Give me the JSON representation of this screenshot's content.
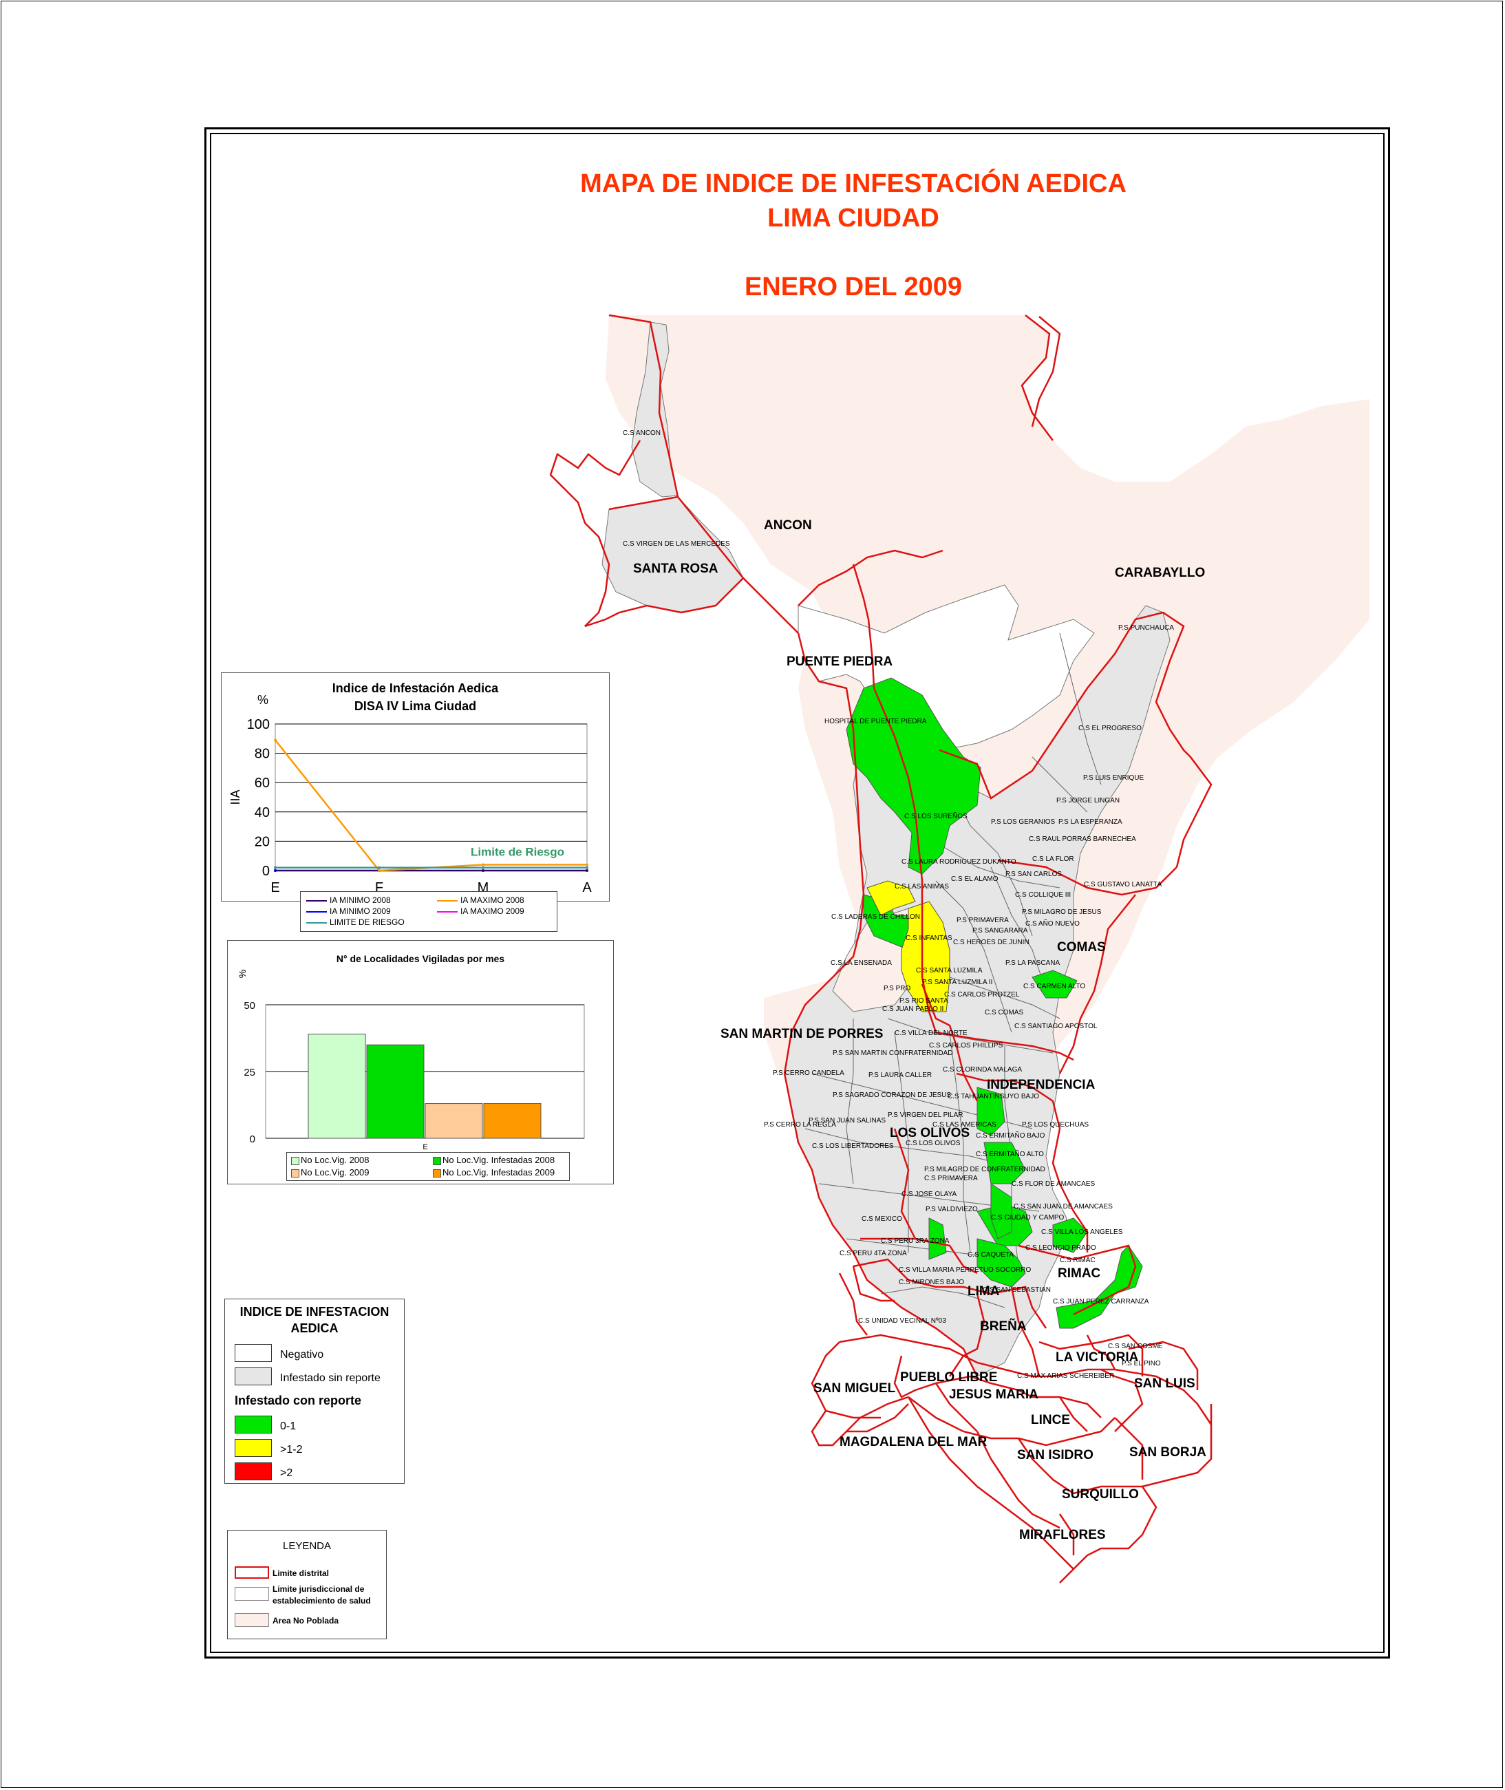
{
  "title": {
    "line1": "MAPA DE INDICE DE INFESTACIÓN AEDICA",
    "line2": "LIMA CIUDAD",
    "line3": "ENERO DEL 2009"
  },
  "colors": {
    "title": "#ff3300",
    "district_border": "#dd1111",
    "jurisdiction_border": "#666666",
    "uninhabited": "#fcefe9",
    "negative": "#ffffff",
    "no_report": "#e6e6e6",
    "green": "#00e600",
    "yellow": "#ffff00",
    "red": "#ff0000"
  },
  "districts": {
    "ancon": "ANCON",
    "santa_rosa": "SANTA ROSA",
    "carabayllo": "CARABAYLLO",
    "puente_piedra": "PUENTE PIEDRA",
    "comas": "COMAS",
    "san_martin": "SAN MARTIN DE PORRES",
    "independencia": "INDEPENDENCIA",
    "los_olivos": "LOS OLIVOS",
    "rimac": "RIMAC",
    "lima": "LIMA",
    "brena": "BREÑA",
    "la_victoria": "LA VICTORIA",
    "san_miguel": "SAN MIGUEL",
    "pueblo_libre": "PUEBLO LIBRE",
    "jesus_maria": "JESUS MARIA",
    "san_luis": "SAN LUIS",
    "lince": "LINCE",
    "magdalena": "MAGDALENA DEL MAR",
    "san_isidro": "SAN ISIDRO",
    "san_borja": "SAN BORJA",
    "surquillo": "SURQUILLO",
    "miraflores": "MIRAFLORES"
  },
  "establishments": [
    "C.S ANCON",
    "C.S VIRGEN DE LAS MERCEDES",
    "P.S PUNCHAUCA",
    "HOSPITAL DE PUENTE PIEDRA",
    "C.S EL PROGRESO",
    "P.S LUIS ENRIQUE",
    "P.S JORGE LINGAN",
    "C.S LOS SUREÑOS",
    "P.S LOS GERANIOS",
    "P.S LA ESPERANZA",
    "C.S RAUL PORRAS BARNECHEA",
    "C.S LAURA RODRIGUEZ DUKANTO",
    "C.S LA FLOR",
    "C.S LAS ANIMAS",
    "C.S EL ALAMO",
    "P.S SAN CARLOS",
    "C.S GUSTAVO LANATTA",
    "C.S COLLIQUE III",
    "C.S LADERAS DE CHILLON",
    "P.S PRIMAVERA",
    "P.S MILAGRO DE JESUS",
    "P.S SANGARARA",
    "C.S AÑO NUEVO",
    "C.S INFANTAS",
    "C.S HEROES DE JUNIN",
    "C.S LA ENSENADA",
    "P.S LA PASCANA",
    "C.S SANTA LUZMILA",
    "P.S SANTA LUZMILA II",
    "C.S CARMEN ALTO",
    "P.S PRO",
    "C.S CARLOS PROTZEL",
    "P.S RIO SANTA",
    "C.S JUAN PABLO II",
    "C.S COMAS",
    "C.S SANTIAGO APOSTOL",
    "C.S VILLA DEL NORTE",
    "C.S CARLOS PHILLIPS",
    "P.S SAN MARTIN CONFRATERNIDAD",
    "C.S CLORINDA MALAGA",
    "P.S CERRO CANDELA",
    "P.S LAURA CALLER",
    "P.S SAGRADO CORAZON DE JESUS",
    "C.S TAHUANTINSUYO BAJO",
    "P.S VIRGEN DEL PILAR",
    "P.S SAN JUAN SALINAS",
    "P.S CERRO LA REGLA",
    "C.S LAS AMERICAS",
    "P.S LOS QUECHUAS",
    "C.S LOS LIBERTADORES",
    "C.S LOS OLIVOS",
    "C.S ERMITAÑO BAJO",
    "C.S ERMITAÑO ALTO",
    "P.S MILAGRO DE CONFRATERNIDAD",
    "C.S PRIMAVERA",
    "C.S FLOR DE AMANCAES",
    "C.S JOSE OLAYA",
    "C.S SAN JUAN DE AMANCAES",
    "P.S VALDIVIEZO",
    "C.S MEXICO",
    "C.S CIUDAD Y CAMPO",
    "C.S PERU 3RA ZONA",
    "C.S VILLA LOS ANGELES",
    "C.S PERU 4TA ZONA",
    "C.S CAQUETA",
    "C.S LEONCIO PRADO",
    "C.S VILLA MARIA PERPETUO SOCORRO",
    "C.S RIMAC",
    "C.S MIRONES BAJO",
    "C.S SAN SEBASTIAN",
    "C.S JUAN PEREZ CARRANZA",
    "C.S UNIDAD VECINAL Nº03",
    "C.S SAN COSME",
    "P.S EL PINO",
    "C.S MAX ARIAS SCHEREIBER"
  ],
  "chart_data": [
    {
      "type": "line",
      "title": "Indice de Infestación Aedica",
      "subtitle": "DISA IV Lima Ciudad",
      "unit_label": "%",
      "ylabel": "IIA",
      "ylim": [
        0,
        100
      ],
      "yticks": [
        0,
        20,
        40,
        60,
        80,
        100
      ],
      "x": [
        "E",
        "F",
        "M",
        "A"
      ],
      "grid": true,
      "annotation": "Limite de Riesgo",
      "series": [
        {
          "name": "IA MINIMO 2008",
          "color": "#330066",
          "values": [
            0,
            0,
            0,
            0
          ]
        },
        {
          "name": "IA MAXIMO 2008",
          "color": "#ff9900",
          "values": [
            89,
            0,
            4,
            4
          ]
        },
        {
          "name": "IA MINIMO 2009",
          "color": "#0000ff",
          "values": [
            0,
            null,
            null,
            null
          ]
        },
        {
          "name": "IA MAXIMO 2009",
          "color": "#ff00ff",
          "values": [
            2,
            null,
            null,
            null
          ]
        },
        {
          "name": "LIMITE DE RIESGO",
          "color": "#339999",
          "values": [
            2,
            2,
            2,
            2
          ]
        }
      ]
    },
    {
      "type": "bar",
      "title": "N° de Localidades Vigiladas por mes",
      "unit_label": "%",
      "ylim": [
        0,
        50
      ],
      "yticks": [
        0,
        25,
        50
      ],
      "categories": [
        "E"
      ],
      "grid": true,
      "series": [
        {
          "name": "No Loc.Vig. 2008",
          "color": "#ccffcc",
          "values": [
            39
          ]
        },
        {
          "name": "No Loc.Vig. Infestadas 2008",
          "color": "#00dd00",
          "values": [
            35
          ]
        },
        {
          "name": "No Loc.Vig. 2009",
          "color": "#ffcc99",
          "values": [
            13
          ]
        },
        {
          "name": "No Loc.Vig. Infestadas 2009",
          "color": "#ff9900",
          "values": [
            13
          ]
        }
      ]
    }
  ],
  "index_legend": {
    "title_line1": "INDICE DE INFESTACION",
    "title_line2": "AEDICA",
    "negative": "Negativo",
    "no_report": "Infestado sin reporte",
    "with_report": "Infestado con reporte",
    "range1": "0-1",
    "range2": ">1-2",
    "range3": ">2"
  },
  "legend": {
    "title": "LEYENDA",
    "district_limit": "Limite distrital",
    "jurisdiction_limit_line1": "Limite jurisdiccional de",
    "jurisdiction_limit_line2": "establecimiento de salud",
    "uninhabited": "Area No Poblada"
  }
}
